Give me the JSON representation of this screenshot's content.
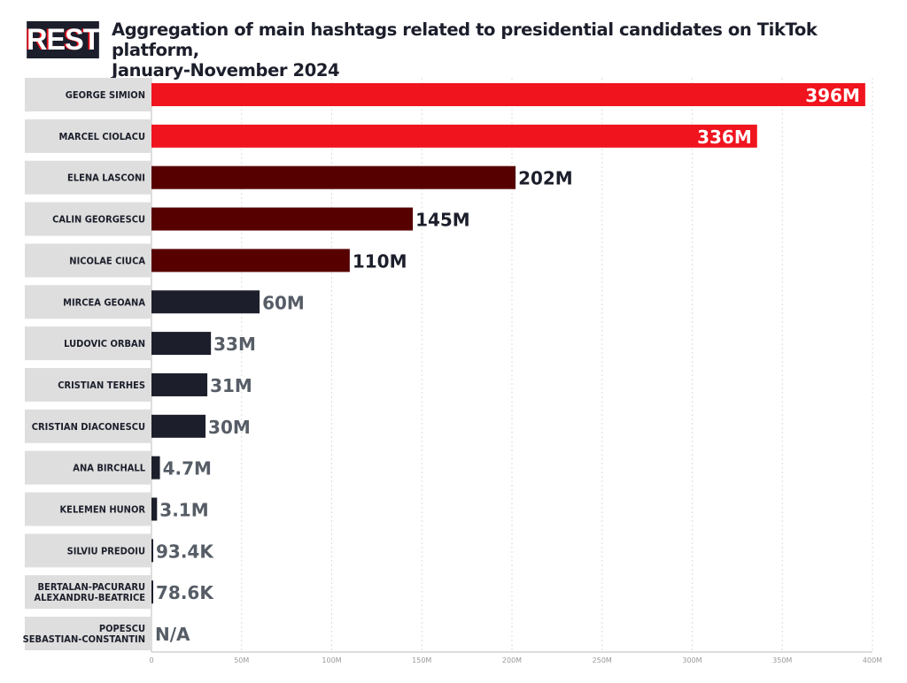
{
  "header": {
    "logo_text": "REST",
    "title_line1": "Aggregation of main hashtags related to presidential candidates on TikTok platform,",
    "title_line2": "January-November 2024"
  },
  "colors": {
    "top": "#f0141e",
    "mid": "#560000",
    "low": "#1c1f2b",
    "label_low": "#565d66",
    "label_mid": "#1c1f2b",
    "label_top": "#ffffff",
    "label_bg": "#dedede"
  },
  "chart_data": {
    "type": "bar",
    "orientation": "horizontal",
    "title": "Aggregation of main hashtags related to presidential candidates on TikTok platform, January-November 2024",
    "xlabel": "",
    "ylabel": "",
    "xlim": [
      0,
      400
    ],
    "unit": "M",
    "grid": true,
    "x_ticks": [
      "0",
      "50M",
      "100M",
      "150M",
      "200M",
      "250M",
      "300M",
      "350M",
      "400M"
    ],
    "categories": [
      [
        "GEORGE SIMION"
      ],
      [
        "MARCEL CIOLACU"
      ],
      [
        "ELENA LASCONI"
      ],
      [
        "CALIN GEORGESCU"
      ],
      [
        "NICOLAE CIUCA"
      ],
      [
        "MIRCEA GEOANA"
      ],
      [
        "LUDOVIC ORBAN"
      ],
      [
        "CRISTIAN TERHES"
      ],
      [
        "CRISTIAN DIACONESCU"
      ],
      [
        "ANA BIRCHALL"
      ],
      [
        "KELEMEN HUNOR"
      ],
      [
        "SILVIU PREDOIU"
      ],
      [
        "BERTALAN-PACURARU",
        "ALEXANDRU-BEATRICE"
      ],
      [
        "POPESCU",
        "SEBASTIAN-CONSTANTIN"
      ]
    ],
    "values": [
      396,
      336,
      202,
      145,
      110,
      60,
      33,
      31,
      30,
      4.7,
      3.1,
      0.0934,
      0.0786,
      null
    ],
    "value_labels": [
      "396M",
      "336M",
      "202M",
      "145M",
      "110M",
      "60M",
      "33M",
      "31M",
      "30M",
      "4.7M",
      "3.1M",
      "93.4K",
      "78.6K",
      "N/A"
    ],
    "color_groups": [
      "top",
      "top",
      "mid",
      "mid",
      "mid",
      "low",
      "low",
      "low",
      "low",
      "low",
      "low",
      "low",
      "low",
      "low"
    ]
  }
}
